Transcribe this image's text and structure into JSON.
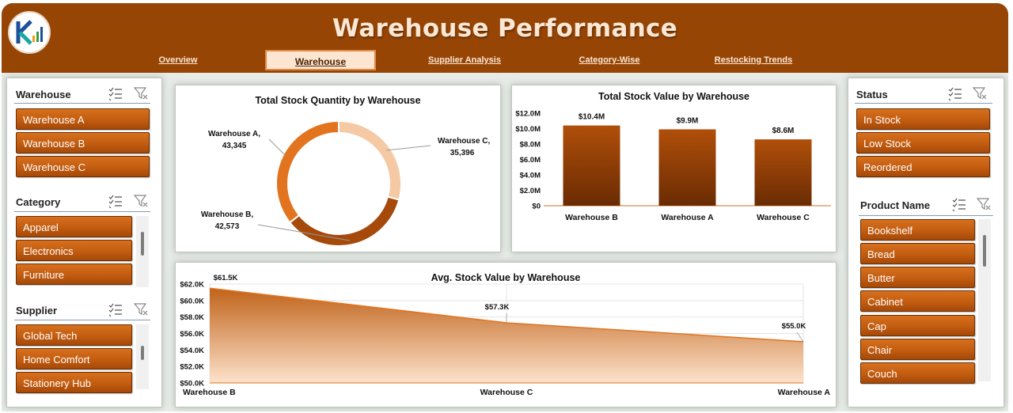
{
  "header": {
    "title": "Warehouse Performance",
    "nav": [
      "Overview",
      "Warehouse",
      "Supplier Analysis",
      "Category-Wise",
      "Restocking Trends"
    ],
    "active_nav": "Warehouse"
  },
  "slicers": {
    "warehouse": {
      "title": "Warehouse",
      "items": [
        "Warehouse A",
        "Warehouse B",
        "Warehouse C"
      ]
    },
    "category": {
      "title": "Category",
      "items": [
        "Apparel",
        "Electronics",
        "Furniture"
      ]
    },
    "supplier": {
      "title": "Supplier",
      "items": [
        "Global Tech",
        "Home Comfort",
        "Stationery Hub"
      ]
    },
    "status": {
      "title": "Status",
      "items": [
        "In Stock",
        "Low Stock",
        "Reordered"
      ]
    },
    "product": {
      "title": "Product Name",
      "items": [
        "Bookshelf",
        "Bread",
        "Butter",
        "Cabinet",
        "Cap",
        "Chair",
        "Couch"
      ]
    }
  },
  "icons": {
    "logo": "kpi-logo",
    "multi_select": "multi-select-icon",
    "clear_filter": "clear-filter-icon"
  },
  "colors": {
    "header": "#974505",
    "button": "#c25c10",
    "donut_light": "#f4c9a4",
    "donut_mid": "#e2741f",
    "donut_dark": "#a54a0a"
  },
  "chart_data": [
    {
      "type": "pie",
      "title": "Total Stock Quantity by Warehouse",
      "categories": [
        "Warehouse C",
        "Warehouse B",
        "Warehouse A"
      ],
      "values": [
        35396,
        42573,
        43345
      ],
      "labels": [
        {
          "name": "Warehouse C,",
          "value": "35,396"
        },
        {
          "name": "Warehouse B,",
          "value": "42,573"
        },
        {
          "name": "Warehouse A,",
          "value": "43,345"
        }
      ]
    },
    {
      "type": "bar",
      "title": "Total Stock Value by Warehouse",
      "categories": [
        "Warehouse B",
        "Warehouse A",
        "Warehouse C"
      ],
      "values": [
        10.4,
        9.9,
        8.6
      ],
      "data_labels": [
        "$10.4M",
        "$9.9M",
        "$8.6M"
      ],
      "yticks": [
        "$12.0M",
        "$10.0M",
        "$8.0M",
        "$6.0M",
        "$4.0M",
        "$2.0M",
        "$0"
      ],
      "ylim": [
        0,
        12
      ]
    },
    {
      "type": "area",
      "title": "Avg.  Stock Value by Warehouse",
      "categories": [
        "Warehouse B",
        "Warehouse C",
        "Warehouse A"
      ],
      "values": [
        61.5,
        57.3,
        55.0
      ],
      "data_labels": [
        "$61.5K",
        "$57.3K",
        "$55.0K"
      ],
      "yticks": [
        "$62.0K",
        "$60.0K",
        "$58.0K",
        "$56.0K",
        "$54.0K",
        "$52.0K",
        "$50.0K"
      ],
      "ylim": [
        50,
        62
      ]
    }
  ]
}
